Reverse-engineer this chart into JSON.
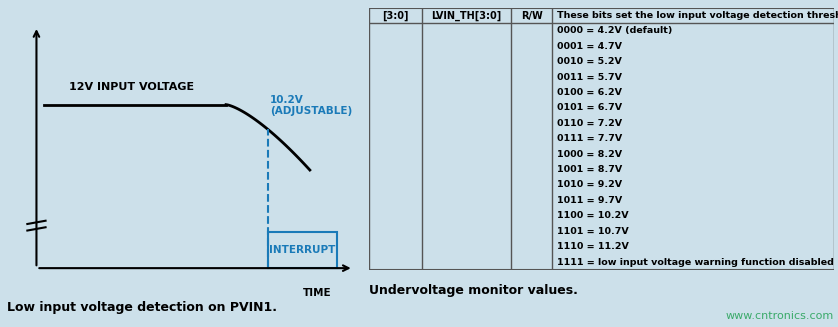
{
  "bg_color": "#cce0ea",
  "left_panel": {
    "title": "Low input voltage detection on PVIN1.",
    "voltage_label": "12V INPUT VOLTAGE",
    "adjustable_label": "10.2V\n(ADJUSTABLE)",
    "interrupt_label": "INTERRUPT",
    "time_label": "TIME",
    "line_color": "#000000",
    "blue_color": "#1a7ab8"
  },
  "right_panel": {
    "title": "Undervoltage monitor values.",
    "col1_header": "[3:0]",
    "col2_header": "LVIN_TH[3:0]",
    "col3_header": "R/W",
    "col4_header": "These bits set the low input voltage detection threshold.",
    "table_rows": [
      "0000 = 4.2V (default)",
      "0001 = 4.7V",
      "0010 = 5.2V",
      "0011 = 5.7V",
      "0100 = 6.2V",
      "0101 = 6.7V",
      "0110 = 7.2V",
      "0111 = 7.7V",
      "1000 = 8.2V",
      "1001 = 8.7V",
      "1010 = 9.2V",
      "1011 = 9.7V",
      "1100 = 10.2V",
      "1101 = 10.7V",
      "1110 = 11.2V",
      "1111 = low input voltage warning function disabled"
    ],
    "watermark": "www.cntronics.com",
    "watermark_color": "#3aaa6a"
  }
}
